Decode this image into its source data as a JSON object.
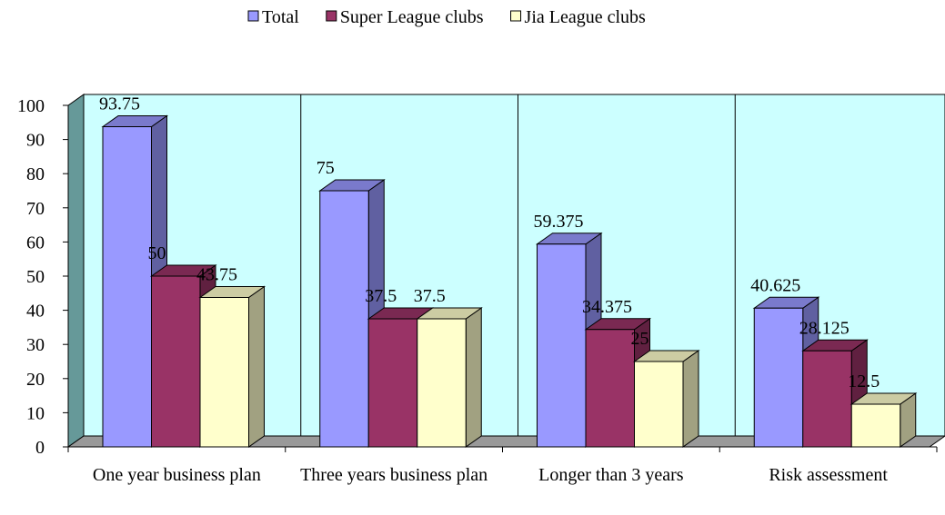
{
  "chart_data": {
    "type": "bar3d",
    "categories": [
      "One year business plan",
      "Three years business plan",
      "Longer than 3 years",
      "Risk assessment"
    ],
    "series": [
      {
        "name": "Total",
        "color": "#9999ff",
        "values": [
          93.75,
          75,
          59.375,
          40.625
        ]
      },
      {
        "name": "Super League clubs",
        "color": "#993366",
        "values": [
          50,
          37.5,
          34.375,
          28.125
        ]
      },
      {
        "name": "Jia League clubs",
        "color": "#ffffcc",
        "values": [
          43.75,
          37.5,
          25,
          12.5
        ]
      }
    ],
    "ylim": [
      0,
      100
    ],
    "yticks": [
      0,
      10,
      20,
      30,
      40,
      50,
      60,
      70,
      80,
      90,
      100
    ],
    "legend": "top",
    "wall_color": "#ccffff"
  }
}
